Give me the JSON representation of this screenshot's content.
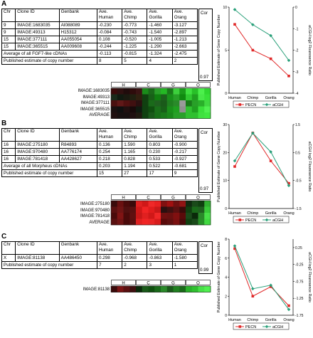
{
  "panels": [
    {
      "letter": "A",
      "headers": [
        "Chr",
        "Clone ID",
        "Genbank",
        "Ave. Human",
        "Ave. Chimp",
        "Ave. Gorilla",
        "Ave. Orang"
      ],
      "cor_header": "Cor",
      "rows": [
        [
          "9",
          "IMAGE:1683035",
          "AI088089",
          "-0.230",
          "-0.773",
          "-1.460",
          "-3.127"
        ],
        [
          "9",
          "IMAGE:49313",
          "H15312",
          "-0.084",
          "-0.743",
          "-1.540",
          "-2.897"
        ],
        [
          "15",
          "IMAGE:377111",
          "AA055054",
          "0.108",
          "-0.520",
          "-1.005",
          "-1.213"
        ],
        [
          "15",
          "IMAGE:365515",
          "AA009608",
          "-0.244",
          "-1.225",
          "-1.290",
          "-2.663"
        ]
      ],
      "avg_label": "Average of all FGF7-like cDNAs",
      "avg_values": [
        "-0.113",
        "-0.815",
        "-1.324",
        "-2.475"
      ],
      "pub_label": "Published estimate of copy number",
      "pub_values": [
        "8",
        "5",
        "4",
        "2"
      ],
      "cor_value": "0.97",
      "heat_groups": [
        "H",
        "C",
        "G",
        "O"
      ],
      "heat_rows": [
        "IMAGE:1683035",
        "IMAGE:49313",
        "IMAGE:377111",
        "IMAGE:365515",
        "AVERAGE"
      ]
    },
    {
      "letter": "B",
      "headers": [
        "Chr",
        "Clone ID",
        "Genbank",
        "Ave. Human",
        "Ave. Chimp",
        "Ave. Gorilla",
        "Ave. Orang"
      ],
      "cor_header": "Cor",
      "rows": [
        [
          "16",
          "IMAGE:275180",
          "R84893",
          "0.136",
          "1.590",
          "0.803",
          "-0.900"
        ],
        [
          "16",
          "IMAGE:970480",
          "AA776174",
          "0.254",
          "1.165",
          "0.230",
          "-0.217"
        ],
        [
          "16",
          "IMAGE:781418",
          "AA428627",
          "0.218",
          "0.828",
          "0.533",
          "-0.927"
        ]
      ],
      "avg_label": "Average of all Morpheus cDNAs",
      "avg_values": [
        "0.203",
        "1.194",
        "0.522",
        "-0.681"
      ],
      "pub_label": "Published estimate of copy number",
      "pub_values": [
        "15",
        "27",
        "17",
        "9"
      ],
      "cor_value": "0.97",
      "heat_groups": [
        "H",
        "C",
        "G",
        "O"
      ],
      "heat_rows": [
        "IMAGE:275180",
        "IMAGE:970480",
        "IMAGE:781418",
        "AVERAGE"
      ]
    },
    {
      "letter": "C",
      "headers": [
        "Chr",
        "Clone ID",
        "Genbank",
        "Ave. Human",
        "Ave. Chimp",
        "Ave. Gorilla",
        "Ave. Orang"
      ],
      "cor_header": "Cor",
      "rows": [
        [
          "X",
          "IMAGE:81138",
          "AA486450",
          "0.298",
          "-0.968",
          "-0.863",
          "-1.580"
        ]
      ],
      "avg_label": "",
      "avg_values": [],
      "pub_label": "Published estimate of copy number",
      "pub_values": [
        "7",
        "2",
        "3",
        "1"
      ],
      "cor_value": "0.99",
      "heat_groups": [
        "H",
        "C",
        "G",
        "O"
      ],
      "heat_rows": [
        "IMAGE:81138"
      ]
    }
  ],
  "heatmap_colors": {
    "A": [
      [
        "#3a0a0a",
        "#2e1010",
        "#200c0c",
        "#2e0c0c",
        "#3a1414",
        "#1a8c1a",
        "#1a6a1a",
        "#2aa02a",
        "#24b824",
        "#1a7a1a",
        "#3cd03c",
        "#1a9a1a",
        "#40e040",
        "#28c028",
        "#4cf04c",
        "#30d830"
      ],
      [
        "#1a2a1a",
        "#101a10",
        "#1a1a10",
        "#202010",
        "#302010",
        "#104010",
        "#186018",
        "#108010",
        "#1c601c",
        "#18901a",
        "#28a028",
        "#108a10",
        "#30c830",
        "#20a020",
        "#48e848",
        "#38e038"
      ],
      [
        "#4a1010",
        "#601818",
        "#501010",
        "#401010",
        "#2a1010",
        "#104010",
        "#1a6a1a",
        "#206020",
        "#1a5a1a",
        "#208020",
        "#2a8a2a",
        "#9a9a9a",
        "#1a7a1a",
        "#28a028",
        "#2ab02a",
        "#40d840"
      ],
      [
        "#1a1010",
        "#101010",
        "#201010",
        "#180a0a",
        "#101a10",
        "#104010",
        "#105010",
        "#1a701a",
        "#186018",
        "#1a901a",
        "#20a020",
        "#909090",
        "#30c030",
        "#20a020",
        "#3ae03a",
        "#50f050"
      ],
      [
        "#201010",
        "#181010",
        "#181010",
        "#201010",
        "#201a10",
        "#104010",
        "#1a5a1a",
        "#187018",
        "#1a7a1a",
        "#1a881a",
        "#28a028",
        "#2aa02a",
        "#30c030",
        "#30c030",
        "#40e040",
        "#40e840"
      ]
    ],
    "B": [
      [
        "#3a0a0a",
        "#6a1010",
        "#4a0a0a",
        "#3a0a0a",
        "#e02020",
        "#d01818",
        "#f02828",
        "#e82020",
        "#801010",
        "#a01010",
        "#701010",
        "#901414",
        "#102a10",
        "#1a4a1a",
        "#104010",
        "#30b030"
      ],
      [
        "#5a1010",
        "#701414",
        "#501010",
        "#5a1010",
        "#d01818",
        "#f02424",
        "#e01c1c",
        "#c81818",
        "#2a1010",
        "#401010",
        "#5a1010",
        "#3a0a0a",
        "#104010",
        "#1a6a1a",
        "#206020",
        "#38c838"
      ],
      [
        "#4a0a0a",
        "#801414",
        "#4a0a0a",
        "#601010",
        "#c81818",
        "#e02020",
        "#d01818",
        "#f02828",
        "#701010",
        "#6a1010",
        "#801010",
        "#5a0a0a",
        "#1a4a1a",
        "#0a2a0a",
        "#2a8a2a",
        "#48e048"
      ],
      [
        "#5a1010",
        "#701414",
        "#4a0a0a",
        "#5a1010",
        "#e02020",
        "#f02424",
        "#e82424",
        "#d81c1c",
        "#5a0a0a",
        "#601010",
        "#7a1010",
        "#4a0a0a",
        "#104010",
        "#1a4a1a",
        "#289028",
        "#40d840"
      ]
    ],
    "C": [
      [
        "#3a0a0a",
        "#7a1414",
        "#5a1010",
        "#401010",
        "#0a2a0a",
        "#1a5a1a",
        "#105010",
        "#1a6a1a",
        "#2a8a2a",
        "#1a5a1a",
        "#208020",
        "#1a6a1a",
        "#2ab02a",
        "#30c030",
        "#48e048",
        "#50f050"
      ]
    ]
  },
  "chart_data": [
    {
      "type": "line",
      "panel": "A",
      "categories": [
        "Human",
        "Chimp",
        "Gorilla",
        "Orang"
      ],
      "ylabel": "Published Estimate of Gene Copy Number",
      "y2label": "aCGH log2 Flouresence Ratio",
      "ylim": [
        0,
        10
      ],
      "y2lim": [
        -4,
        0
      ],
      "yticks": [
        0,
        5,
        10
      ],
      "y2ticks": [
        -4,
        -3,
        -2,
        -1,
        0
      ],
      "series": [
        {
          "name": "PECN",
          "axis": "left",
          "color": "#e02828",
          "marker": "square",
          "values": [
            8,
            5,
            4,
            2
          ]
        },
        {
          "name": "aCGH",
          "axis": "right",
          "color": "#2aa07a",
          "marker": "diamond",
          "values": [
            -0.113,
            -0.815,
            -1.324,
            -2.475
          ]
        }
      ],
      "legend": "bottom"
    },
    {
      "type": "line",
      "panel": "B",
      "categories": [
        "Human",
        "Chimp",
        "Gorilla",
        "Orang"
      ],
      "ylabel": "Published Estimate of Gene Copy Number",
      "y2label": "aCGH log2 Flouresence Ratio",
      "ylim": [
        0,
        30
      ],
      "y2lim": [
        -1.5,
        1.5
      ],
      "yticks": [
        0,
        10,
        20,
        30
      ],
      "y2ticks": [
        -1.5,
        -0.5,
        0.5,
        1.5
      ],
      "series": [
        {
          "name": "PECN",
          "axis": "left",
          "color": "#e02828",
          "marker": "square",
          "values": [
            15,
            27,
            17,
            9
          ]
        },
        {
          "name": "aCGH",
          "axis": "right",
          "color": "#2aa07a",
          "marker": "diamond",
          "values": [
            0.203,
            1.194,
            0.522,
            -0.681
          ]
        }
      ],
      "legend": "bottom"
    },
    {
      "type": "line",
      "panel": "C",
      "categories": [
        "Human",
        "Chimp",
        "Gorilla",
        "Orang"
      ],
      "ylabel": "Published Estimate of Gene Copy Number",
      "y2label": "aCGH log2 Flouresence Ratio",
      "ylim": [
        0,
        8
      ],
      "y2lim": [
        -1.75,
        0.5
      ],
      "yticks": [
        0,
        2,
        4,
        6,
        8
      ],
      "y2ticks": [
        -1.75,
        -1.25,
        -0.75,
        -0.25,
        0.25
      ],
      "series": [
        {
          "name": "PECN",
          "axis": "left",
          "color": "#e02828",
          "marker": "square",
          "values": [
            7,
            2,
            3,
            1
          ]
        },
        {
          "name": "aCGH",
          "axis": "right",
          "color": "#2aa07a",
          "marker": "diamond",
          "values": [
            0.298,
            -0.968,
            -0.863,
            -1.58
          ]
        }
      ],
      "legend": "bottom"
    }
  ]
}
